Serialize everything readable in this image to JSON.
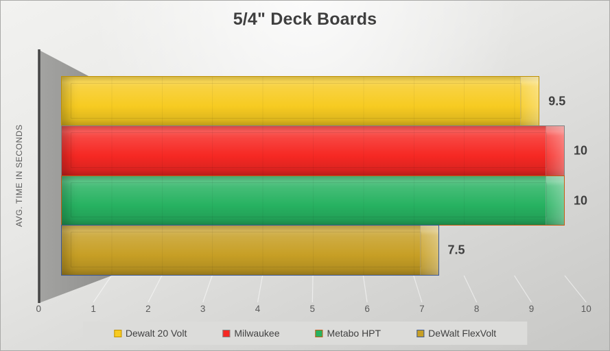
{
  "chart_data": {
    "type": "bar",
    "orientation": "horizontal",
    "style": "3d",
    "title": "5/4\" Deck Boards",
    "ylabel": "AVG. TIME IN SECONDS",
    "xlabel": "",
    "xlim": [
      0,
      10
    ],
    "xticks": [
      "0",
      "1",
      "2",
      "3",
      "4",
      "5",
      "6",
      "7",
      "8",
      "9",
      "10"
    ],
    "grid": "floor-perspective-lines",
    "legend_position": "bottom",
    "categories": [
      "Dewalt 20 Volt",
      "Milwaukee",
      "Metabo HPT",
      "DeWalt FlexVolt"
    ],
    "values": [
      9.5,
      10,
      10,
      7.5
    ],
    "series": [
      {
        "name": "Dewalt 20 Volt",
        "value": 9.5,
        "label": "9.5",
        "color": "#F7CB21",
        "border_color": "#BF9000"
      },
      {
        "name": "Milwaukee",
        "value": 10,
        "label": "10",
        "color": "#F62823",
        "border_color": "#818181"
      },
      {
        "name": "Metabo HPT",
        "value": 10,
        "label": "10",
        "color": "#27B261",
        "border_color": "#C55A11"
      },
      {
        "name": "DeWalt FlexVolt",
        "value": 7.5,
        "label": "7.5",
        "color": "#C79F25",
        "border_color": "#3A5795"
      }
    ]
  },
  "colors": {
    "title_text": "#3f3f3f",
    "axis_text": "#595959",
    "value_label_text": "#3f3f3f",
    "wall": "#9b9b99",
    "wall_edge": "#454545",
    "legend_background": "#dcdcda"
  }
}
